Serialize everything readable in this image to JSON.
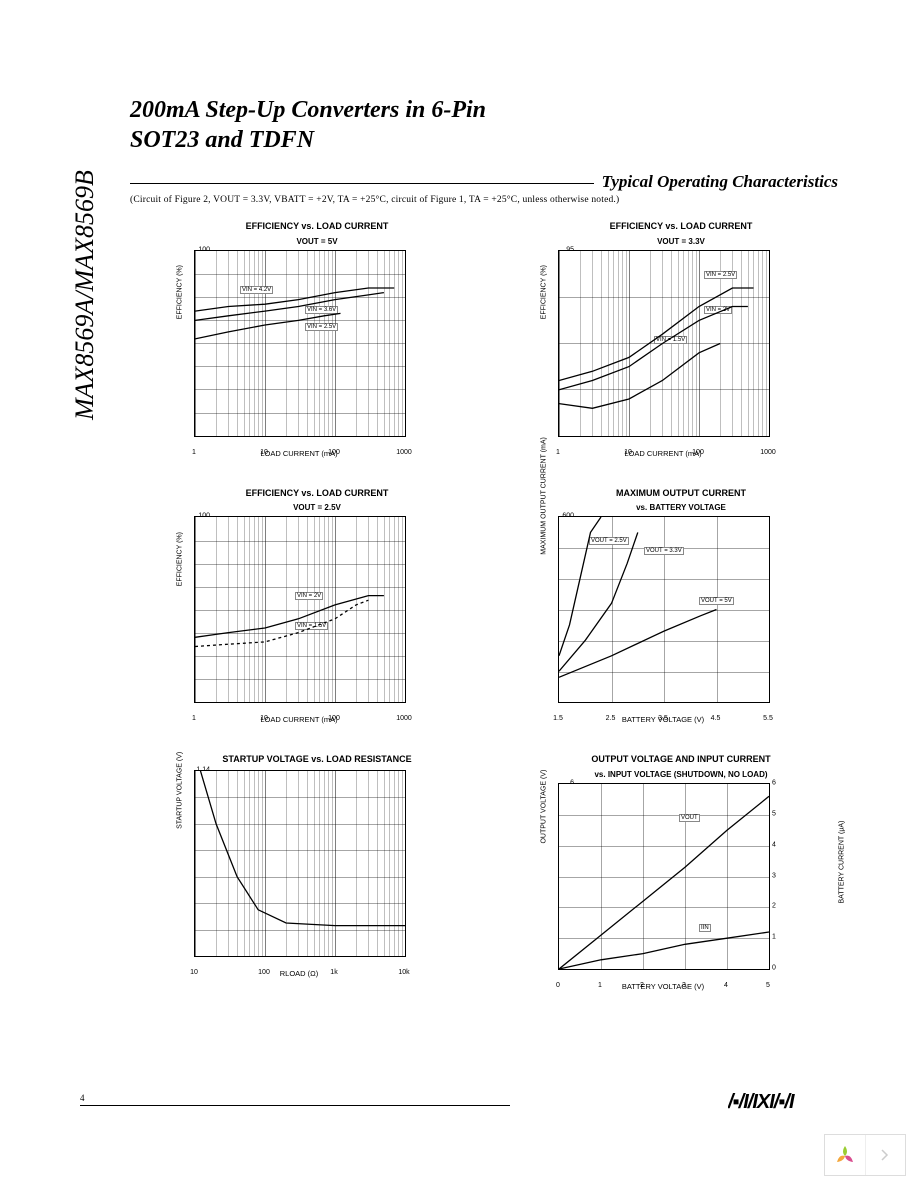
{
  "page": {
    "side_label": "MAX8569A/MAX8569B",
    "title_line1": "200mA Step-Up Converters in 6-Pin",
    "title_line2": "SOT23 and TDFN",
    "section_title": "Typical Operating Characteristics",
    "conditions": "(Circuit of Figure 2, VOUT = 3.3V, VBATT = +2V, TA = +25°C, circuit of Figure 1, TA = +25°C, unless otherwise noted.)",
    "page_number": "4",
    "logo": "MAXIM"
  },
  "charts": [
    {
      "title": "EFFICIENCY vs. LOAD CURRENT",
      "subtitle": "VOUT = 5V",
      "ylabel": "EFFICIENCY (%)",
      "xlabel": "LOAD CURRENT (mA)",
      "type": "line_log_x",
      "xscale": "log",
      "xlim": [
        1,
        1000
      ],
      "xticks": [
        1,
        10,
        100,
        1000
      ],
      "ylim": [
        60,
        100
      ],
      "ystep": 5,
      "font_size_title": 9,
      "font_size_axis": 7,
      "grid_color": "#000000",
      "grid_opacity": 0.35,
      "background": "#ffffff",
      "series": [
        {
          "label": "VIN = 4.2V",
          "label_pos": [
            45,
            35
          ],
          "color": "#000000",
          "width": 1.3,
          "points": [
            [
              1,
              87
            ],
            [
              3,
              88
            ],
            [
              10,
              88.5
            ],
            [
              30,
              89.5
            ],
            [
              100,
              91
            ],
            [
              300,
              92
            ],
            [
              700,
              92
            ]
          ]
        },
        {
          "label": "VIN = 3.6V",
          "label_pos": [
            110,
            55
          ],
          "color": "#000000",
          "width": 1.3,
          "points": [
            [
              1,
              85
            ],
            [
              3,
              86
            ],
            [
              10,
              87
            ],
            [
              30,
              88
            ],
            [
              100,
              89.5
            ],
            [
              300,
              90.5
            ],
            [
              500,
              91
            ]
          ]
        },
        {
          "label": "VIN = 2.5V",
          "label_pos": [
            110,
            72
          ],
          "color": "#000000",
          "width": 1.3,
          "points": [
            [
              1,
              81
            ],
            [
              3,
              82.5
            ],
            [
              10,
              84
            ],
            [
              30,
              85
            ],
            [
              70,
              86
            ],
            [
              120,
              86.5
            ]
          ]
        }
      ]
    },
    {
      "title": "EFFICIENCY vs. LOAD CURRENT",
      "subtitle": "VOUT = 3.3V",
      "ylabel": "EFFICIENCY (%)",
      "xlabel": "LOAD CURRENT (mA)",
      "type": "line_log_x",
      "xscale": "log",
      "xlim": [
        1,
        1000
      ],
      "xticks": [
        1,
        10,
        100,
        1000
      ],
      "ylim": [
        75,
        95
      ],
      "ystep": 5,
      "font_size_title": 9,
      "font_size_axis": 7,
      "grid_color": "#000000",
      "grid_opacity": 0.35,
      "background": "#ffffff",
      "series": [
        {
          "label": "VIN = 2.5V",
          "label_pos": [
            145,
            20
          ],
          "color": "#000000",
          "width": 1.3,
          "points": [
            [
              1,
              81
            ],
            [
              3,
              82
            ],
            [
              10,
              83.5
            ],
            [
              30,
              86
            ],
            [
              100,
              89
            ],
            [
              300,
              91
            ],
            [
              600,
              91
            ]
          ]
        },
        {
          "label": "VIN = 2V",
          "label_pos": [
            145,
            55
          ],
          "color": "#000000",
          "width": 1.3,
          "points": [
            [
              1,
              80
            ],
            [
              3,
              81
            ],
            [
              10,
              82.5
            ],
            [
              30,
              85
            ],
            [
              100,
              87.5
            ],
            [
              300,
              89
            ],
            [
              500,
              89
            ]
          ]
        },
        {
          "label": "VIN = 1.5V",
          "label_pos": [
            95,
            85
          ],
          "color": "#000000",
          "width": 1.3,
          "points": [
            [
              1,
              78.5
            ],
            [
              3,
              78
            ],
            [
              10,
              79
            ],
            [
              30,
              81
            ],
            [
              100,
              84
            ],
            [
              200,
              85
            ]
          ]
        }
      ]
    },
    {
      "title": "EFFICIENCY vs. LOAD CURRENT",
      "subtitle": "VOUT = 2.5V",
      "ylabel": "EFFICIENCY (%)",
      "xlabel": "LOAD CURRENT (mA)",
      "type": "line_log_x",
      "xscale": "log",
      "xlim": [
        1,
        1000
      ],
      "xticks": [
        1,
        10,
        100,
        1000
      ],
      "ylim": [
        60,
        100
      ],
      "ystep": 5,
      "font_size_title": 9,
      "font_size_axis": 7,
      "grid_color": "#000000",
      "grid_opacity": 0.35,
      "background": "#ffffff",
      "series": [
        {
          "label": "VIN = 2V",
          "label_pos": [
            100,
            75
          ],
          "color": "#000000",
          "width": 1.3,
          "points": [
            [
              1,
              74
            ],
            [
              3,
              75
            ],
            [
              10,
              76
            ],
            [
              30,
              78
            ],
            [
              100,
              81
            ],
            [
              300,
              83
            ],
            [
              500,
              83
            ]
          ]
        },
        {
          "label": "VIN = 1.5V",
          "label_pos": [
            100,
            105
          ],
          "color": "#000000",
          "width": 1.3,
          "dash": "3,3",
          "points": [
            [
              1,
              72
            ],
            [
              3,
              72.5
            ],
            [
              10,
              73
            ],
            [
              30,
              75
            ],
            [
              100,
              78
            ],
            [
              200,
              81
            ],
            [
              300,
              82
            ]
          ]
        }
      ]
    },
    {
      "title": "MAXIMUM OUTPUT CURRENT",
      "subtitle": "vs. BATTERY VOLTAGE",
      "ylabel": "MAXIMUM OUTPUT CURRENT (mA)",
      "xlabel": "BATTERY VOLTAGE (V)",
      "type": "line_linear",
      "xscale": "linear",
      "xlim": [
        1.5,
        5.5
      ],
      "xticks": [
        1.5,
        2.5,
        3.5,
        4.5,
        5.5
      ],
      "ylim": [
        0,
        600
      ],
      "ystep": 100,
      "font_size_title": 9,
      "font_size_axis": 7,
      "grid_color": "#000000",
      "grid_opacity": 0.35,
      "background": "#ffffff",
      "series": [
        {
          "label": "VOUT = 2.5V",
          "label_pos": [
            30,
            20
          ],
          "color": "#000000",
          "width": 1.3,
          "points": [
            [
              1.5,
              150
            ],
            [
              1.7,
              250
            ],
            [
              1.9,
              400
            ],
            [
              2.1,
              550
            ],
            [
              2.3,
              600
            ]
          ]
        },
        {
          "label": "VOUT = 3.3V",
          "label_pos": [
            85,
            30
          ],
          "color": "#000000",
          "width": 1.3,
          "points": [
            [
              1.5,
              100
            ],
            [
              2.0,
              200
            ],
            [
              2.5,
              320
            ],
            [
              2.8,
              450
            ],
            [
              3.0,
              550
            ]
          ]
        },
        {
          "label": "VOUT = 5V",
          "label_pos": [
            140,
            80
          ],
          "color": "#000000",
          "width": 1.3,
          "points": [
            [
              1.5,
              80
            ],
            [
              2.5,
              150
            ],
            [
              3.5,
              230
            ],
            [
              4.2,
              280
            ],
            [
              4.5,
              300
            ]
          ]
        }
      ]
    },
    {
      "title": "STARTUP VOLTAGE vs. LOAD RESISTANCE",
      "subtitle": "",
      "ylabel": "STARTUP VOLTAGE (V)",
      "xlabel": "RLOAD (Ω)",
      "type": "line_log_x",
      "xscale": "log",
      "xlim": [
        10,
        10000
      ],
      "xticks": [
        10,
        100,
        1000,
        10000
      ],
      "xtick_labels": [
        "10",
        "100",
        "1k",
        "10k"
      ],
      "ylim": [
        1.0,
        1.14
      ],
      "ystep": 0.02,
      "font_size_title": 9,
      "font_size_axis": 7,
      "grid_color": "#000000",
      "grid_opacity": 0.35,
      "background": "#ffffff",
      "series": [
        {
          "label": "",
          "color": "#000000",
          "width": 1.3,
          "points": [
            [
              12,
              1.14
            ],
            [
              20,
              1.1
            ],
            [
              40,
              1.06
            ],
            [
              80,
              1.035
            ],
            [
              200,
              1.025
            ],
            [
              1000,
              1.023
            ],
            [
              10000,
              1.023
            ]
          ]
        }
      ]
    },
    {
      "title": "OUTPUT VOLTAGE AND INPUT CURRENT",
      "subtitle": "vs. INPUT VOLTAGE (SHUTDOWN, NO LOAD)",
      "ylabel": "OUTPUT VOLTAGE (V)",
      "ylabel_right": "BATTERY CURRENT (μA)",
      "xlabel": "BATTERY VOLTAGE (V)",
      "type": "line_linear_dual",
      "xscale": "linear",
      "xlim": [
        0,
        5
      ],
      "xticks": [
        0,
        1,
        2,
        3,
        4,
        5
      ],
      "ylim": [
        0,
        6
      ],
      "ystep": 1,
      "ylim_right": [
        0,
        6
      ],
      "ystep_right": 1,
      "font_size_title": 9,
      "font_size_axis": 7,
      "grid_color": "#000000",
      "grid_opacity": 0.35,
      "background": "#ffffff",
      "series": [
        {
          "label": "VOUT",
          "label_pos": [
            120,
            30
          ],
          "color": "#000000",
          "width": 1.3,
          "axis": "left",
          "points": [
            [
              0,
              0
            ],
            [
              1,
              1.1
            ],
            [
              2,
              2.2
            ],
            [
              3,
              3.3
            ],
            [
              4,
              4.5
            ],
            [
              5,
              5.6
            ]
          ]
        },
        {
          "label": "IIN",
          "label_pos": [
            140,
            140
          ],
          "color": "#000000",
          "width": 1.3,
          "axis": "right",
          "points": [
            [
              0,
              0
            ],
            [
              1,
              0.3
            ],
            [
              2,
              0.5
            ],
            [
              3,
              0.8
            ],
            [
              4,
              1.0
            ],
            [
              5,
              1.2
            ]
          ]
        }
      ]
    }
  ]
}
